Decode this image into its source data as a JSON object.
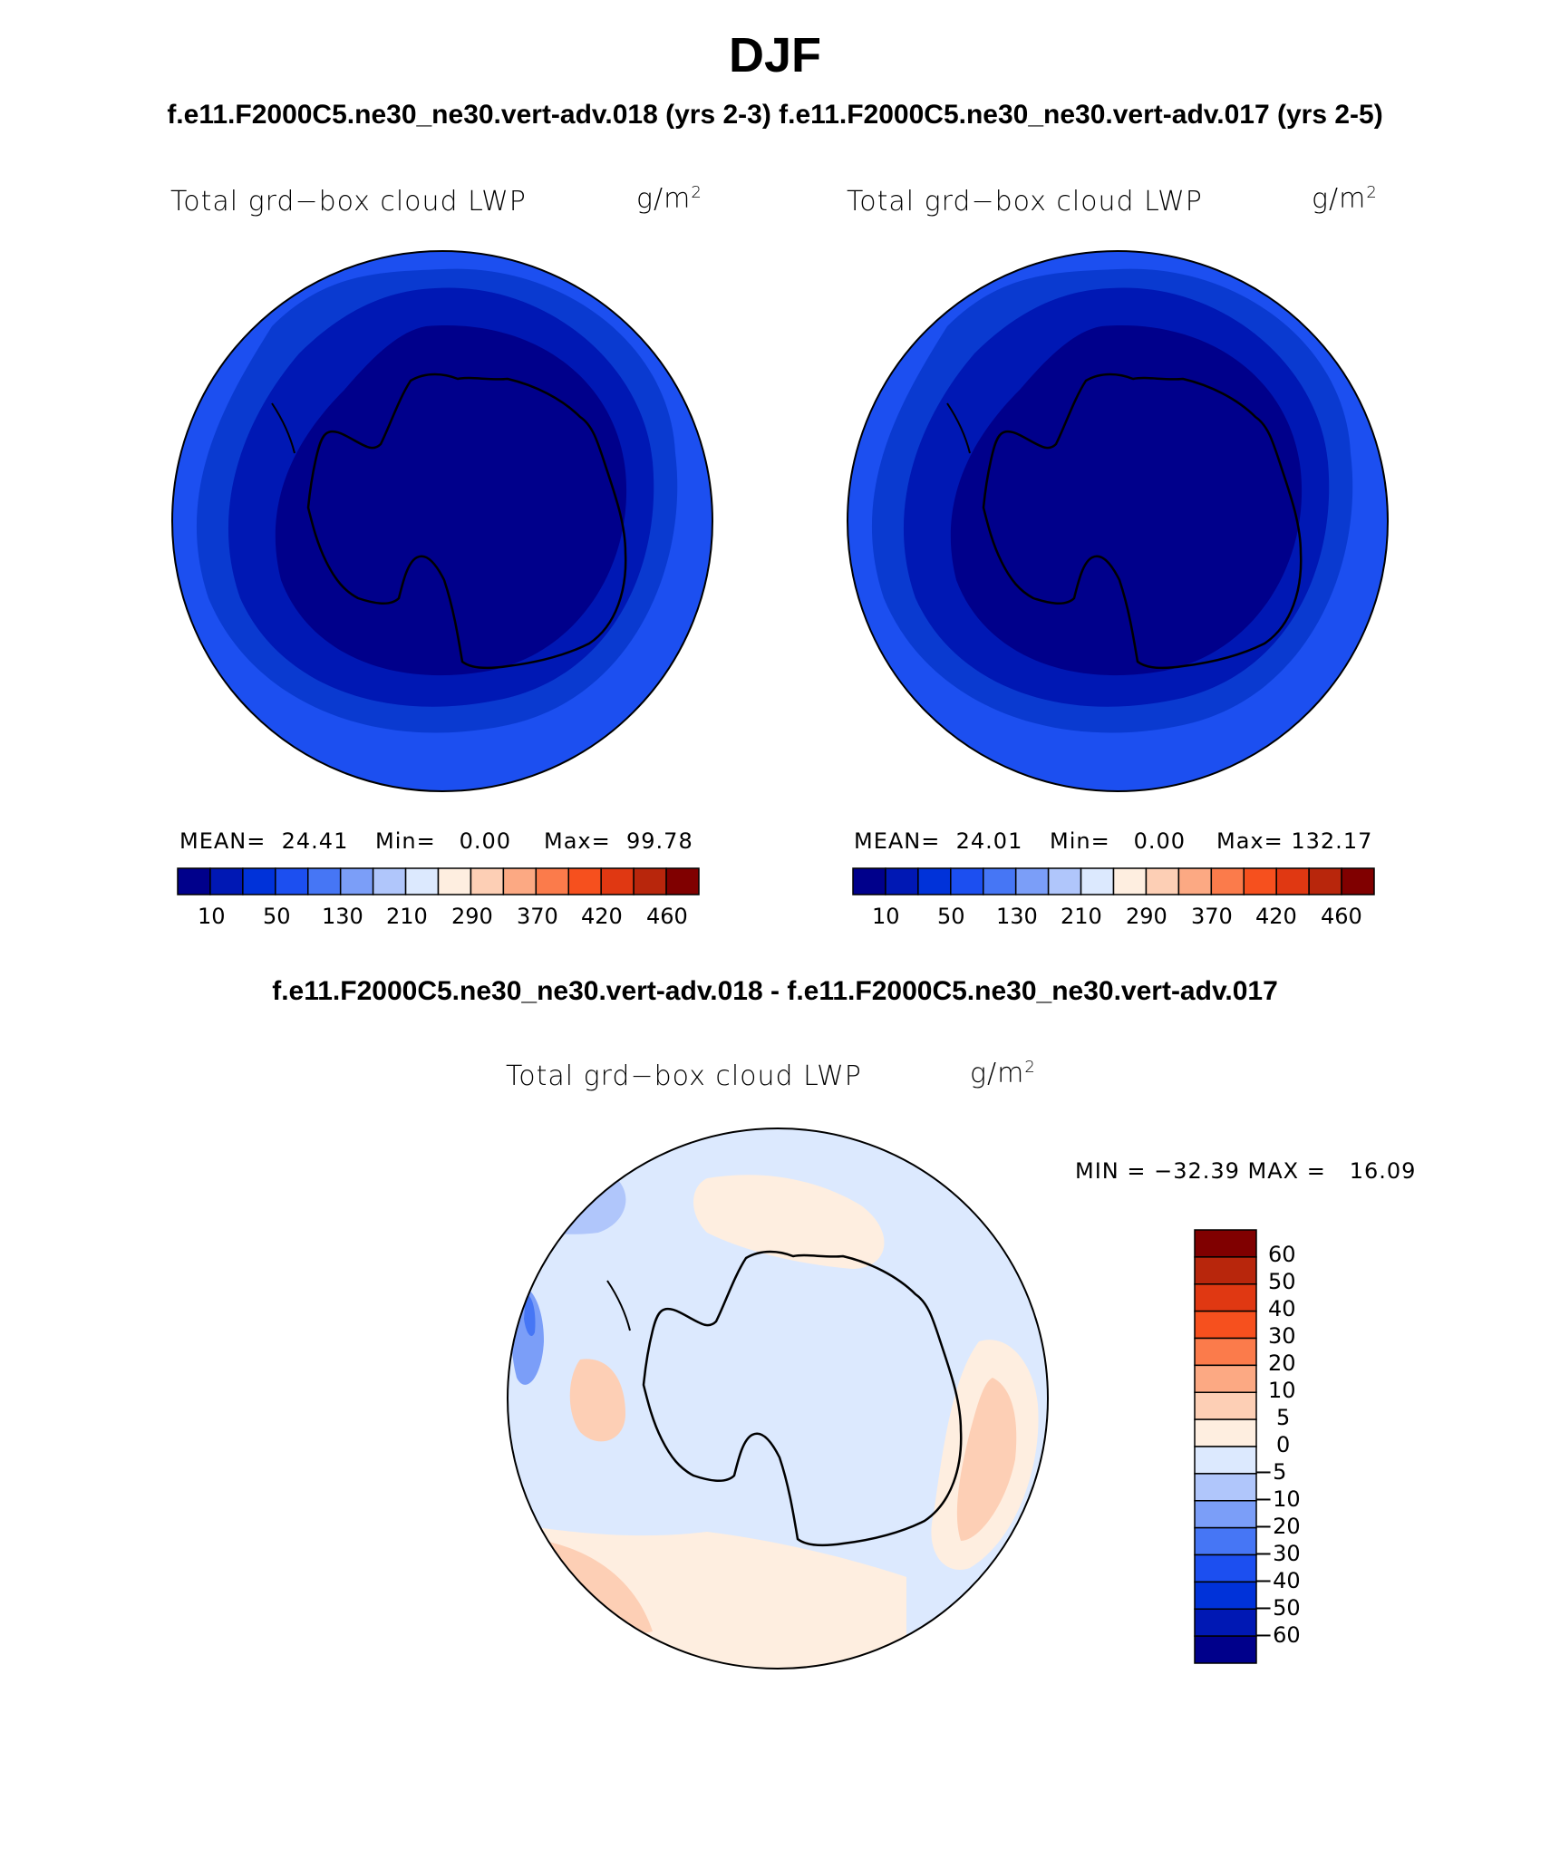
{
  "title": "DJF",
  "case_titles": "f.e11.F2000C5.ne30_ne30.vert-adv.018 (yrs 2-3)  f.e11.F2000C5.ne30_ne30.vert-adv.017 (yrs 2-5)",
  "panels": [
    {
      "label": "Total grd−box cloud LWP",
      "units": "g/m",
      "units_sup": "2",
      "stats": {
        "mean_label": "MEAN=",
        "mean": "24.41",
        "min_label": "Min=",
        "min": "0.00",
        "max_label": "Max=",
        "max": "99.78"
      },
      "colorbar_ticks": [
        "10",
        "50",
        "130",
        "210",
        "290",
        "370",
        "420",
        "460"
      ]
    },
    {
      "label": "Total grd−box cloud LWP",
      "units": "g/m",
      "units_sup": "2",
      "stats": {
        "mean_label": "MEAN=",
        "mean": "24.01",
        "min_label": "Min=",
        "min": "0.00",
        "max_label": "Max=",
        "max": "132.17"
      },
      "colorbar_ticks": [
        "10",
        "50",
        "130",
        "210",
        "290",
        "370",
        "420",
        "460"
      ]
    }
  ],
  "diff_title": "f.e11.F2000C5.ne30_ne30.vert-adv.018 - f.e11.F2000C5.ne30_ne30.vert-adv.017",
  "diff_panel": {
    "label": "Total grd−box cloud LWP",
    "units": "g/m",
    "units_sup": "2",
    "minmax": "MIN = −32.39 MAX =   16.09",
    "colorbar_ticks": [
      "60",
      "50",
      "40",
      "30",
      "20",
      "10",
      "5",
      "0",
      "−5",
      "−10",
      "−20",
      "−30",
      "−40",
      "−50",
      "−60"
    ]
  },
  "colors": {
    "abs_scale": [
      "#00008b",
      "#0018b4",
      "#0032d9",
      "#1c4ff0",
      "#4676f5",
      "#7b9ef8",
      "#b0c6fb",
      "#dce9fe",
      "#feeee0",
      "#fdcfb5",
      "#fca983",
      "#fb7b4b",
      "#f6501e",
      "#e03812",
      "#b8260c",
      "#800000"
    ],
    "diff_scale": [
      "#00008b",
      "#0018b4",
      "#0032d9",
      "#1c4ff0",
      "#4676f5",
      "#7b9ef8",
      "#b0c6fb",
      "#dce9fe",
      "#feeee0",
      "#fdcfb5",
      "#fca983",
      "#fb7b4b",
      "#f6501e",
      "#e03812",
      "#b8260c",
      "#800000"
    ]
  }
}
